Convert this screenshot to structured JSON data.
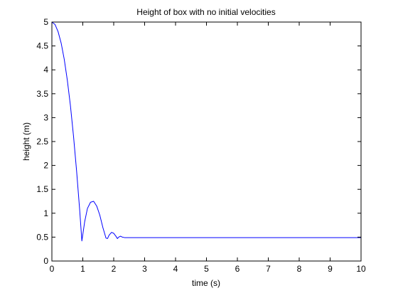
{
  "chart_data": {
    "type": "line",
    "title": "Height of box with no initial velocities",
    "xlabel": "time (s)",
    "ylabel": "height (m)",
    "xlim": [
      0,
      10
    ],
    "ylim": [
      0,
      5
    ],
    "xticks": [
      0,
      1,
      2,
      3,
      4,
      5,
      6,
      7,
      8,
      9,
      10
    ],
    "xtick_labels": [
      "0",
      "1",
      "2",
      "3",
      "4",
      "5",
      "6",
      "7",
      "8",
      "9",
      "10"
    ],
    "yticks": [
      0,
      0.5,
      1,
      1.5,
      2,
      2.5,
      3,
      3.5,
      4,
      4.5,
      5
    ],
    "ytick_labels": [
      "0",
      "0.5",
      "1",
      "1.5",
      "2",
      "2.5",
      "3",
      "3.5",
      "4",
      "4.5",
      "5"
    ],
    "grid": false,
    "legend": "none",
    "series": [
      {
        "color": "#0000ff",
        "x": [
          0,
          0.1,
          0.2,
          0.3,
          0.4,
          0.5,
          0.6,
          0.7,
          0.8,
          0.9,
          0.97,
          1.06,
          1.15,
          1.25,
          1.35,
          1.45,
          1.55,
          1.65,
          1.75,
          1.8,
          1.85,
          1.93,
          2.0,
          2.07,
          2.12,
          2.16,
          2.22,
          2.28,
          2.35,
          3,
          4,
          5,
          6,
          7,
          8,
          9,
          10
        ],
        "y": [
          5.0,
          4.95,
          4.8,
          4.56,
          4.22,
          3.78,
          3.25,
          2.61,
          1.88,
          1.06,
          0.42,
          0.82,
          1.1,
          1.23,
          1.25,
          1.15,
          0.96,
          0.7,
          0.48,
          0.47,
          0.54,
          0.6,
          0.58,
          0.52,
          0.47,
          0.5,
          0.52,
          0.5,
          0.49,
          0.49,
          0.49,
          0.49,
          0.49,
          0.49,
          0.49,
          0.49,
          0.49
        ]
      }
    ]
  }
}
